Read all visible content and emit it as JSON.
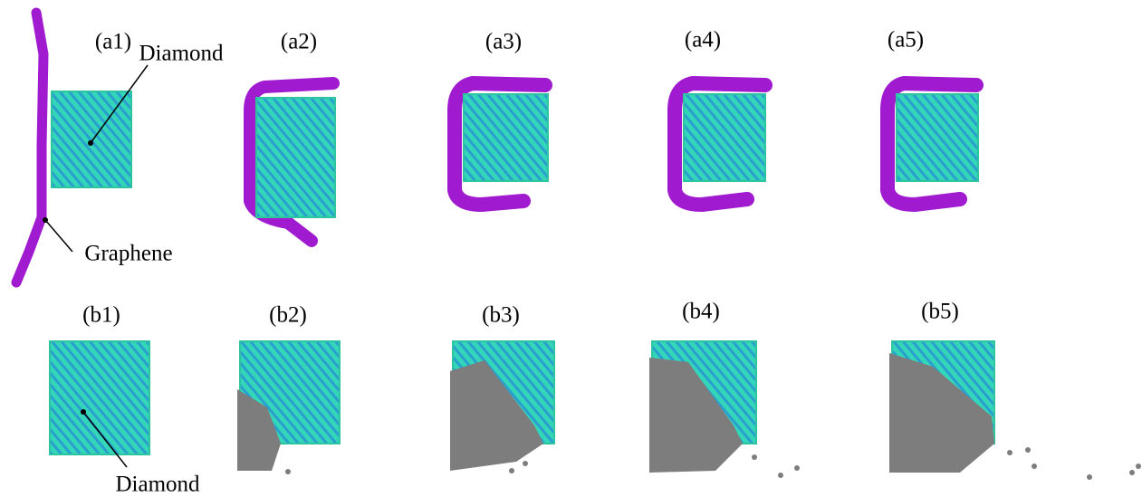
{
  "row_a_labels": [
    "(a1)",
    "(a2)",
    "(a3)",
    "(a4)",
    "(a5)"
  ],
  "row_b_labels": [
    "(b1)",
    "(b2)",
    "(b3)",
    "(b4)",
    "(b5)"
  ],
  "callouts": {
    "diamond_top": "Diamond",
    "graphene": "Graphene",
    "diamond_bottom": "Diamond"
  }
}
